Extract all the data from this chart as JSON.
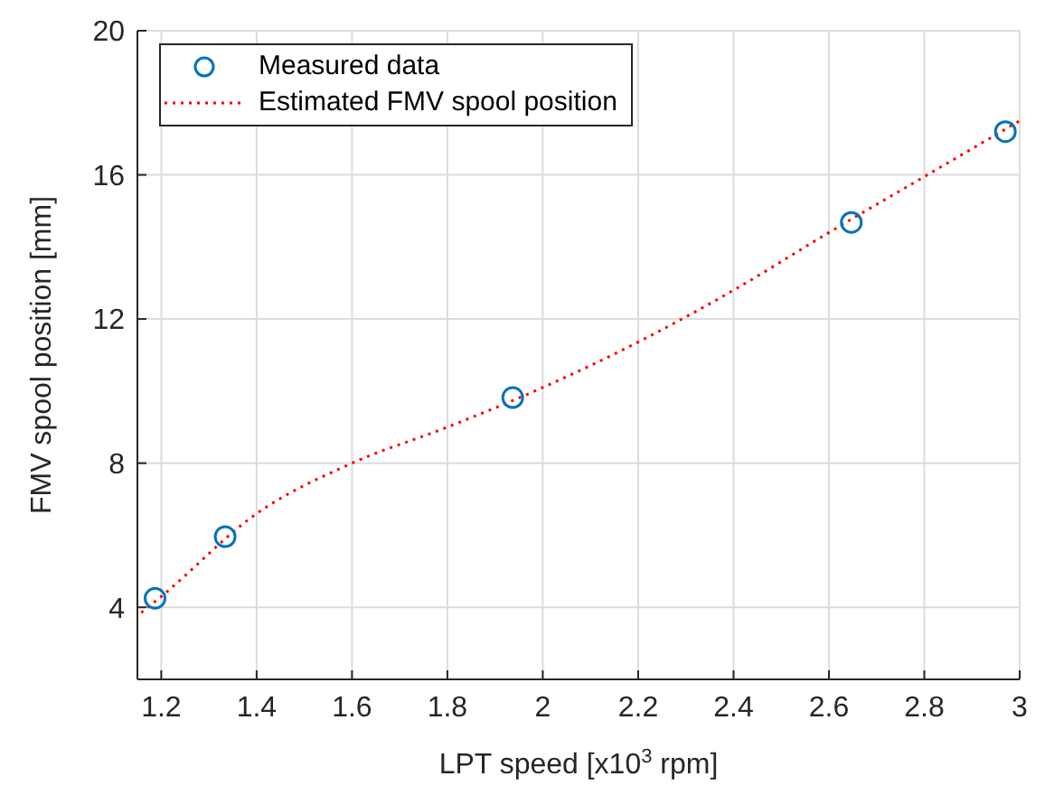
{
  "chart_data": {
    "type": "scatter",
    "xlabel": "LPT speed [x10$^{3}$ rpm]",
    "ylabel": "FMV spool position [mm]",
    "xlim": [
      1.15,
      3
    ],
    "xticks": [
      1.2,
      1.4,
      1.6,
      1.8,
      {
        "value": 2,
        "label": "2"
      },
      2.2,
      2.4,
      2.6,
      2.8,
      {
        "value": 3,
        "label": "3"
      }
    ],
    "ylim": [
      2,
      20
    ],
    "yticks": [
      4,
      8,
      12,
      16,
      20
    ],
    "grid": true,
    "legend": "top left",
    "series": [
      {
        "name": "Measured data",
        "color": "#0072bd",
        "marker": "circle",
        "x": [
          1.187,
          1.334,
          1.937,
          2.647,
          2.97
        ],
        "values": [
          4.25,
          5.96,
          9.82,
          14.68,
          17.2
        ]
      },
      {
        "name": "Estimated FMV spool position",
        "type": "line",
        "color": "#ff0000",
        "marker": "none",
        "line_style": "dotted",
        "x": [
          1.158,
          1.2,
          1.4,
          1.6,
          1.8,
          2.0,
          2.2,
          2.4,
          2.6,
          2.8,
          3.0
        ],
        "values": [
          3.85,
          4.3,
          6.6,
          8.0,
          9.0,
          10.1,
          11.36,
          12.8,
          14.4,
          15.95,
          17.5
        ]
      }
    ]
  }
}
